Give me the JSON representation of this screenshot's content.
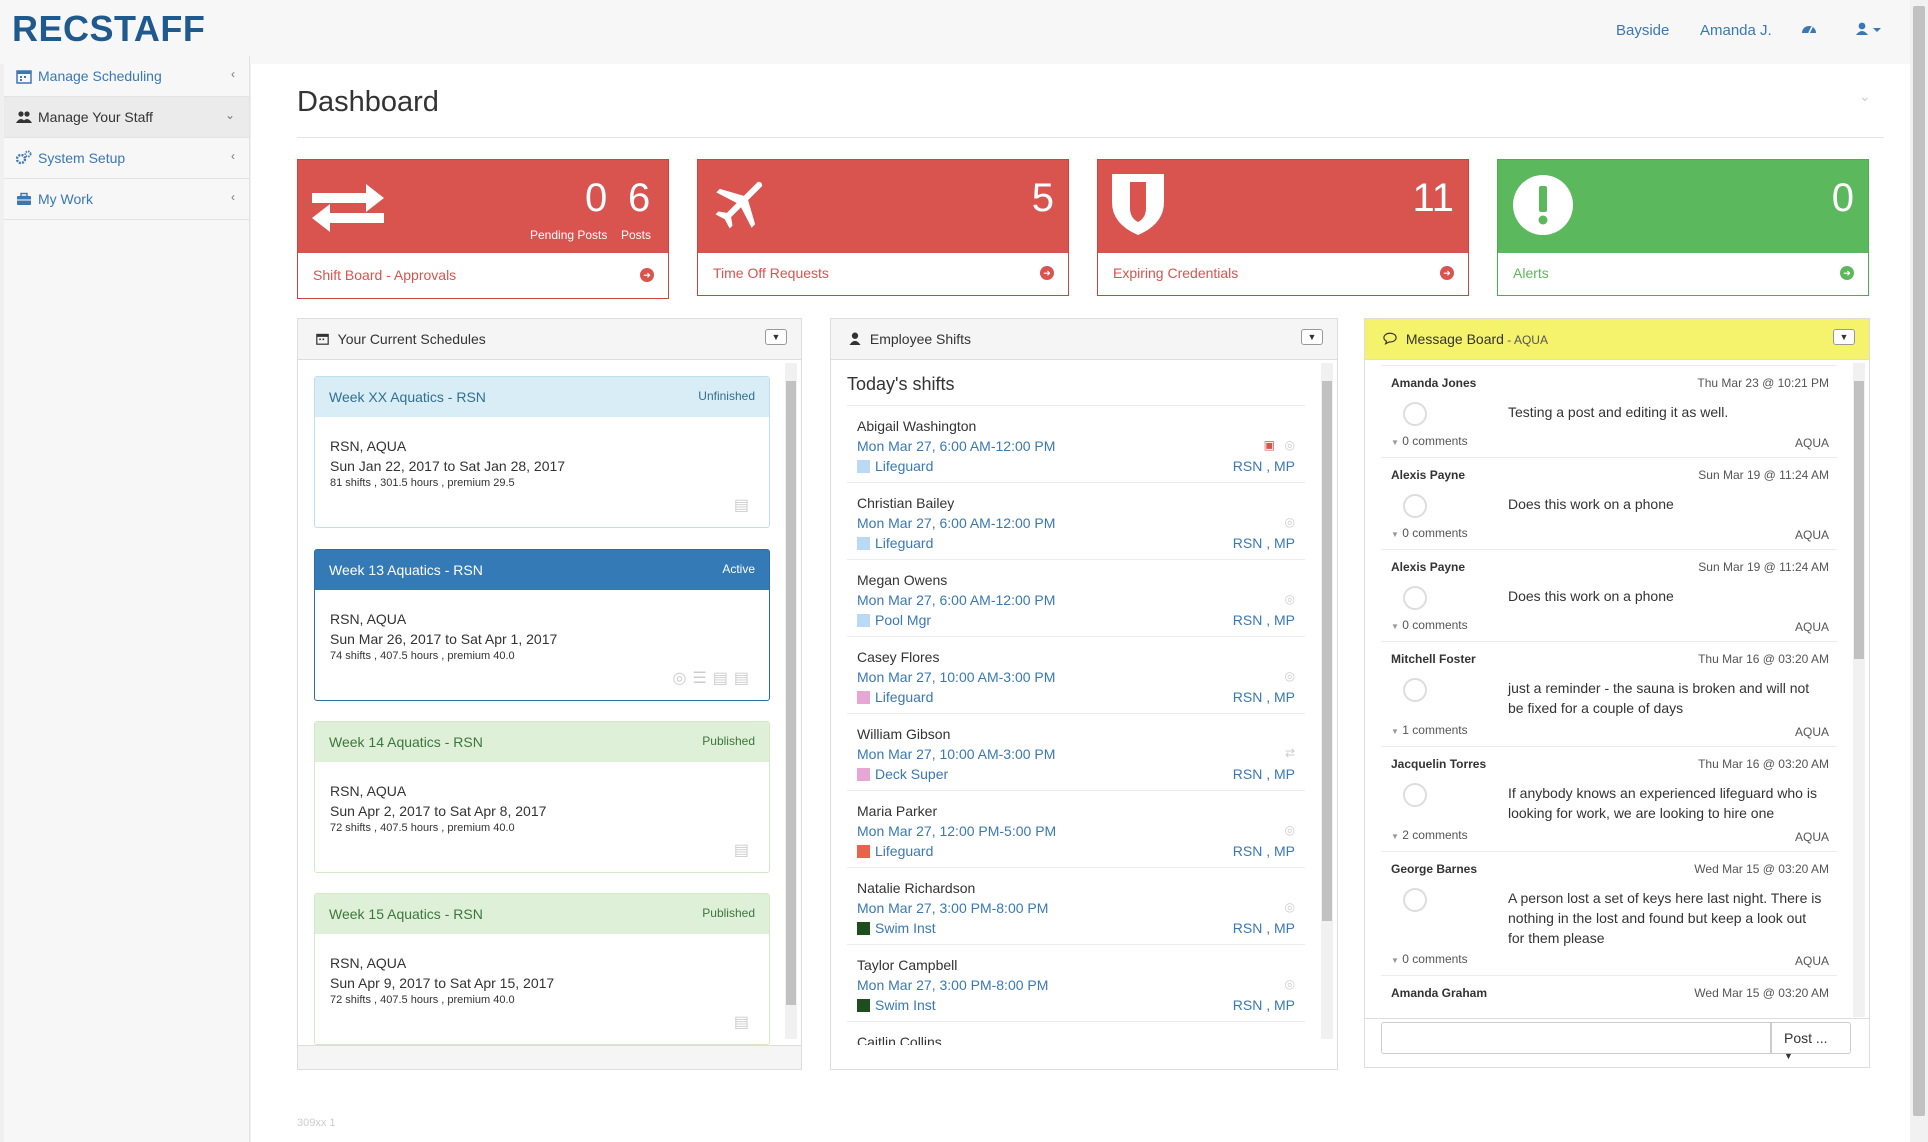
{
  "app": {
    "logo": "RECSTAFF"
  },
  "topnav": {
    "location": "Bayside",
    "user": "Amanda J."
  },
  "sidebar": {
    "items": [
      {
        "label": "Manage Scheduling",
        "icon": "calendar-icon"
      },
      {
        "label": "Manage Your Staff",
        "icon": "users-icon"
      },
      {
        "label": "System Setup",
        "icon": "gears-icon"
      },
      {
        "label": "My Work",
        "icon": "briefcase-icon"
      }
    ]
  },
  "page": {
    "title": "Dashboard",
    "version": "309xx 1"
  },
  "tiles": {
    "shift_board": {
      "pending": "0",
      "pending_label": "Pending Posts",
      "posts": "6",
      "posts_label": "Posts",
      "label": "Shift Board - Approvals"
    },
    "time_off": {
      "count": "5",
      "label": "Time Off Requests"
    },
    "credentials": {
      "count": "11",
      "label": "Expiring Credentials"
    },
    "alerts": {
      "count": "0",
      "label": "Alerts"
    }
  },
  "schedules": {
    "title": "Your Current Schedules",
    "items": [
      {
        "name": "Week XX Aquatics - RSN",
        "status": "Unfinished",
        "orgs": "RSN, AQUA",
        "dates": "Sun Jan 22, 2017 to Sat Jan 28, 2017",
        "stats": "81 shifts , 301.5 hours , premium 29.5"
      },
      {
        "name": "Week 13 Aquatics - RSN",
        "status": "Active",
        "orgs": "RSN, AQUA",
        "dates": "Sun Mar 26, 2017 to Sat Apr 1, 2017",
        "stats": "74 shifts , 407.5 hours , premium 40.0"
      },
      {
        "name": "Week 14 Aquatics - RSN",
        "status": "Published",
        "orgs": "RSN, AQUA",
        "dates": "Sun Apr 2, 2017 to Sat Apr 8, 2017",
        "stats": "72 shifts , 407.5 hours , premium 40.0"
      },
      {
        "name": "Week 15 Aquatics - RSN",
        "status": "Published",
        "orgs": "RSN, AQUA",
        "dates": "Sun Apr 9, 2017 to Sat Apr 15, 2017",
        "stats": "72 shifts , 407.5 hours , premium 40.0"
      }
    ]
  },
  "shifts": {
    "title": "Employee Shifts",
    "subtitle": "Today's shifts",
    "items": [
      {
        "name": "Abigail Washington",
        "time": "Mon Mar 27, 6:00 AM-12:00 PM",
        "role": "Lifeguard",
        "color": "#b9d9f5",
        "loc": "RSN , MP"
      },
      {
        "name": "Christian Bailey",
        "time": "Mon Mar 27, 6:00 AM-12:00 PM",
        "role": "Lifeguard",
        "color": "#b9d9f5",
        "loc": "RSN , MP"
      },
      {
        "name": "Megan Owens",
        "time": "Mon Mar 27, 6:00 AM-12:00 PM",
        "role": "Pool Mgr",
        "color": "#b9d9f5",
        "loc": "RSN , MP"
      },
      {
        "name": "Casey Flores",
        "time": "Mon Mar 27, 10:00 AM-3:00 PM",
        "role": "Lifeguard",
        "color": "#e6a6d6",
        "loc": "RSN , MP"
      },
      {
        "name": "William Gibson",
        "time": "Mon Mar 27, 10:00 AM-3:00 PM",
        "role": "Deck Super",
        "color": "#e6a6d6",
        "loc": "RSN , MP"
      },
      {
        "name": "Maria Parker",
        "time": "Mon Mar 27, 12:00 PM-5:00 PM",
        "role": "Lifeguard",
        "color": "#e9634a",
        "loc": "RSN , MP"
      },
      {
        "name": "Natalie Richardson",
        "time": "Mon Mar 27, 3:00 PM-8:00 PM",
        "role": "Swim Inst",
        "color": "#1e4d1e",
        "loc": "RSN , MP"
      },
      {
        "name": "Taylor Campbell",
        "time": "Mon Mar 27, 3:00 PM-8:00 PM",
        "role": "Swim Inst",
        "color": "#1e4d1e",
        "loc": "RSN , MP"
      },
      {
        "name": "Caitlin Collins"
      }
    ]
  },
  "messages": {
    "title": "Message Board",
    "org": " - AQUA",
    "post_label": "Post ...",
    "items": [
      {
        "author": "Amanda Jones",
        "date": "Thu Mar 23 @ 10:21 PM",
        "text": "Testing a post and editing it as well.",
        "comments": "0 comments",
        "org": "AQUA"
      },
      {
        "author": "Alexis Payne",
        "date": "Sun Mar 19 @ 11:24 AM",
        "text": "Does this work on a phone",
        "comments": "0 comments",
        "org": "AQUA"
      },
      {
        "author": "Alexis Payne",
        "date": "Sun Mar 19 @ 11:24 AM",
        "text": "Does this work on a phone",
        "comments": "0 comments",
        "org": "AQUA"
      },
      {
        "author": "Mitchell Foster",
        "date": "Thu Mar 16 @ 03:20 AM",
        "text": "just a reminder - the sauna is broken and will not be fixed for a couple of days",
        "comments": "1 comments",
        "org": "AQUA"
      },
      {
        "author": "Jacquelin Torres",
        "date": "Thu Mar 16 @ 03:20 AM",
        "text": "If anybody knows an experienced lifeguard who is looking for work, we are looking to hire one",
        "comments": "2 comments",
        "org": "AQUA"
      },
      {
        "author": "George Barnes",
        "date": "Wed Mar 15 @ 03:20 AM",
        "text": "A person lost a set of keys here last night. There is nothing in the lost and found but keep a look out for them please",
        "comments": "0 comments",
        "org": "AQUA"
      },
      {
        "author": "Amanda Graham",
        "date": "Wed Mar 15 @ 03:20 AM"
      }
    ]
  }
}
